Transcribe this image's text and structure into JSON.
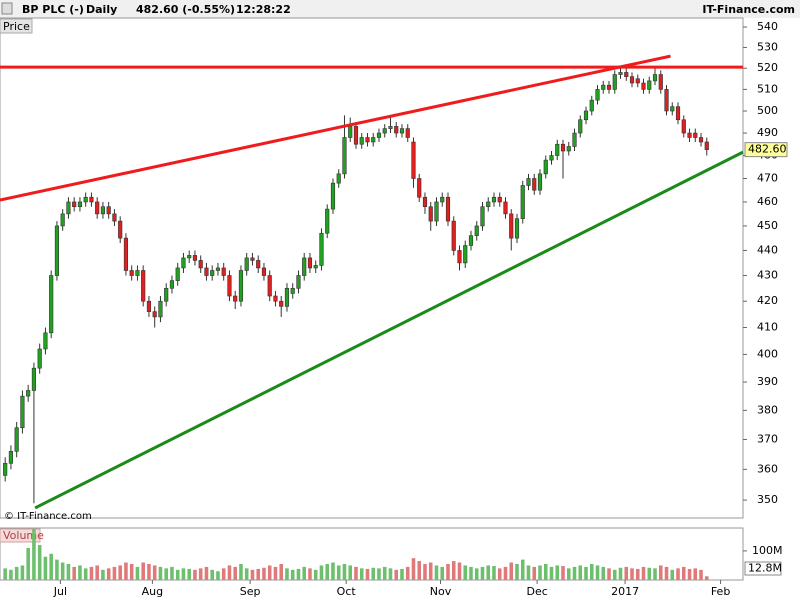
{
  "header": {
    "symbol": "BP PLC (-)",
    "period": "Daily",
    "quote": "482.60 (-0.55%)",
    "time": "12:28:22",
    "brand": "IT-Finance.com"
  },
  "chart_data": {
    "type": "candlestick",
    "panel_label": "Price",
    "watermark": "© IT-Finance.com",
    "log_scale": true,
    "ylim": [
      344.3,
      544.5
    ],
    "yticks": [
      350,
      360,
      370,
      380,
      390,
      400,
      410,
      420,
      430,
      440,
      450,
      460,
      470,
      480,
      490,
      500,
      510,
      520,
      530,
      540
    ],
    "xlim": [
      -0.9,
      128.3
    ],
    "xticks": [
      {
        "value": 9.6,
        "label": "Jul"
      },
      {
        "value": 25.6,
        "label": "Aug"
      },
      {
        "value": 42.6,
        "label": "Sep"
      },
      {
        "value": 59.3,
        "label": "Oct"
      },
      {
        "value": 75.7,
        "label": "Nov"
      },
      {
        "value": 92.5,
        "label": "Dec"
      },
      {
        "value": 107.8,
        "label": "2017"
      },
      {
        "value": 124.4,
        "label": "Feb"
      }
    ],
    "up_color": "#22a022",
    "down_color": "#dd2020",
    "open": [
      358,
      362,
      366,
      374,
      385,
      387,
      395,
      402,
      408,
      430,
      450,
      455,
      460,
      458,
      460,
      462,
      460,
      455,
      458,
      455,
      452,
      445,
      432,
      430,
      432,
      420,
      416,
      414,
      420,
      425,
      428,
      433,
      437,
      438,
      436,
      433,
      430,
      432,
      433,
      430,
      422,
      420,
      432,
      437,
      436,
      433,
      430,
      422,
      420,
      418,
      423,
      425,
      430,
      437,
      433,
      434,
      447,
      457,
      468,
      472,
      488,
      493,
      485,
      488,
      486,
      488,
      490,
      492,
      493,
      490,
      492,
      486,
      470,
      462,
      458,
      452,
      460,
      462,
      452,
      440,
      435,
      442,
      446,
      450,
      458,
      460,
      462,
      460,
      455,
      445,
      453,
      467,
      470,
      465,
      472,
      478,
      480,
      485,
      482,
      484,
      490,
      496,
      500,
      505,
      510,
      512,
      510,
      517,
      518,
      516,
      515,
      513,
      510,
      514,
      517,
      510,
      500,
      502,
      496,
      490,
      490,
      488,
      486
    ],
    "high": [
      364,
      368,
      376,
      387,
      389,
      397,
      404,
      410,
      432,
      452,
      457,
      462,
      462,
      462,
      464,
      464,
      462,
      460,
      460,
      457,
      454,
      447,
      434,
      434,
      434,
      422,
      418,
      422,
      427,
      430,
      435,
      439,
      440,
      440,
      438,
      435,
      434,
      435,
      435,
      432,
      424,
      434,
      439,
      439,
      438,
      435,
      432,
      424,
      422,
      427,
      427,
      432,
      439,
      439,
      436,
      449,
      459,
      470,
      474,
      498,
      497,
      495,
      490,
      490,
      490,
      492,
      494,
      497,
      495,
      494,
      494,
      488,
      472,
      464,
      460,
      462,
      464,
      464,
      454,
      442,
      444,
      448,
      452,
      460,
      462,
      464,
      464,
      462,
      457,
      455,
      469,
      472,
      472,
      474,
      480,
      482,
      487,
      487,
      486,
      492,
      498,
      502,
      507,
      512,
      514,
      514,
      519,
      521,
      520,
      518,
      517,
      515,
      516,
      521,
      519,
      512,
      504,
      504,
      498,
      492,
      492,
      490,
      488
    ],
    "low": [
      356,
      360,
      364,
      372,
      383,
      349,
      393,
      400,
      406,
      428,
      448,
      453,
      456,
      456,
      458,
      458,
      453,
      453,
      453,
      450,
      443,
      430,
      428,
      428,
      418,
      414,
      410,
      412,
      418,
      423,
      426,
      431,
      435,
      434,
      431,
      428,
      428,
      430,
      428,
      420,
      417,
      418,
      430,
      434,
      431,
      428,
      420,
      418,
      414,
      416,
      421,
      423,
      428,
      431,
      431,
      432,
      445,
      455,
      466,
      470,
      486,
      483,
      483,
      484,
      484,
      486,
      488,
      490,
      488,
      488,
      486,
      466,
      460,
      455,
      448,
      450,
      458,
      450,
      438,
      432,
      433,
      440,
      444,
      448,
      456,
      458,
      458,
      453,
      440,
      443,
      451,
      465,
      463,
      463,
      470,
      476,
      478,
      470,
      480,
      482,
      488,
      494,
      498,
      503,
      508,
      508,
      508,
      515,
      514,
      511,
      511,
      508,
      508,
      512,
      508,
      498,
      498,
      494,
      488,
      486,
      486,
      484,
      480
    ],
    "close": [
      362,
      366,
      374,
      385,
      387,
      395,
      402,
      408,
      430,
      450,
      455,
      460,
      458,
      460,
      462,
      460,
      455,
      458,
      455,
      452,
      445,
      432,
      430,
      432,
      420,
      416,
      414,
      420,
      425,
      428,
      433,
      437,
      438,
      436,
      433,
      430,
      432,
      433,
      430,
      422,
      420,
      432,
      437,
      436,
      433,
      430,
      422,
      420,
      418,
      425,
      425,
      430,
      437,
      433,
      434,
      447,
      457,
      468,
      472,
      488,
      493,
      485,
      488,
      486,
      488,
      490,
      492,
      493,
      490,
      492,
      488,
      470,
      462,
      458,
      452,
      460,
      462,
      452,
      440,
      435,
      442,
      446,
      450,
      458,
      460,
      462,
      460,
      455,
      445,
      453,
      467,
      470,
      465,
      472,
      478,
      480,
      485,
      482,
      484,
      490,
      496,
      500,
      505,
      510,
      512,
      510,
      517,
      518,
      516,
      513,
      513,
      510,
      514,
      517,
      510,
      500,
      502,
      496,
      490,
      488,
      488,
      486,
      482.6
    ],
    "last_price": {
      "value": 482.6,
      "label": "482.60"
    },
    "lines": [
      {
        "color": "#ee1c1c",
        "start": [
          -0.9,
          460.8
        ],
        "end": [
          115.7,
          525.8
        ]
      },
      {
        "color": "#ee1c1c",
        "start": [
          -0.9,
          520.5
        ],
        "end": [
          128.3,
          520.5
        ]
      },
      {
        "color": "#1a8a1a",
        "start": [
          5.2,
          347.5
        ],
        "end": [
          128.3,
          481.5
        ]
      }
    ],
    "volume": {
      "label": "Volume",
      "ylim": [
        0,
        178.6
      ],
      "yticks": [
        {
          "value": 100,
          "label": "100M"
        }
      ],
      "values": [
        40,
        35,
        45,
        50,
        110,
        175,
        120,
        80,
        90,
        70,
        60,
        55,
        45,
        50,
        40,
        45,
        50,
        35,
        40,
        45,
        50,
        60,
        55,
        45,
        60,
        55,
        50,
        45,
        40,
        45,
        35,
        40,
        38,
        35,
        40,
        45,
        35,
        30,
        40,
        50,
        45,
        55,
        40,
        35,
        38,
        42,
        50,
        45,
        55,
        40,
        35,
        38,
        45,
        40,
        35,
        50,
        55,
        60,
        50,
        55,
        50,
        45,
        40,
        38,
        42,
        40,
        45,
        40,
        35,
        38,
        45,
        75,
        65,
        55,
        60,
        50,
        45,
        55,
        65,
        60,
        50,
        45,
        40,
        45,
        50,
        48,
        40,
        45,
        60,
        55,
        70,
        50,
        45,
        50,
        55,
        45,
        50,
        48,
        40,
        45,
        50,
        45,
        55,
        50,
        45,
        40,
        35,
        42,
        45,
        40,
        38,
        45,
        42,
        40,
        50,
        45,
        35,
        40,
        45,
        38,
        40,
        35,
        12.8
      ],
      "last": {
        "value": 12.8,
        "label": "12.8M"
      }
    }
  }
}
